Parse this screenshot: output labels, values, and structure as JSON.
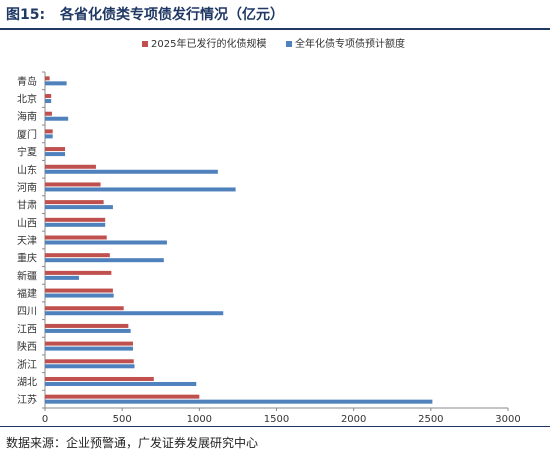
{
  "header": {
    "figure_number": "图15:",
    "title": "各省化债类专项债发行情况（亿元）"
  },
  "source": "数据来源：企业预警通，广发证券发展研究中心",
  "colors": {
    "series_2025": "#c0504d",
    "series_full_year": "#4f81bd",
    "title": "#1f3864"
  },
  "chart_data": {
    "type": "bar",
    "orientation": "horizontal",
    "categories": [
      "青岛",
      "北京",
      "海南",
      "厦门",
      "宁夏",
      "山东",
      "河南",
      "甘肃",
      "山西",
      "天津",
      "重庆",
      "新疆",
      "福建",
      "四川",
      "江西",
      "陕西",
      "浙江",
      "湖北",
      "江苏"
    ],
    "series": [
      {
        "name": "2025年已发行的化债规模",
        "color": "#c0504d",
        "values": [
          30,
          40,
          45,
          50,
          130,
          330,
          360,
          380,
          390,
          400,
          420,
          430,
          440,
          510,
          540,
          570,
          575,
          705,
          1000
        ]
      },
      {
        "name": "全年化债专项债预计额度",
        "color": "#4f81bd",
        "values": [
          140,
          40,
          150,
          50,
          130,
          1120,
          1235,
          440,
          390,
          790,
          770,
          220,
          445,
          1155,
          555,
          570,
          580,
          980,
          2510
        ]
      }
    ],
    "xlim": [
      0,
      3000
    ],
    "xticks": [
      "0",
      "500",
      "1000",
      "1500",
      "2000",
      "2500",
      "3000"
    ],
    "legend_position": "top",
    "grid": false
  }
}
